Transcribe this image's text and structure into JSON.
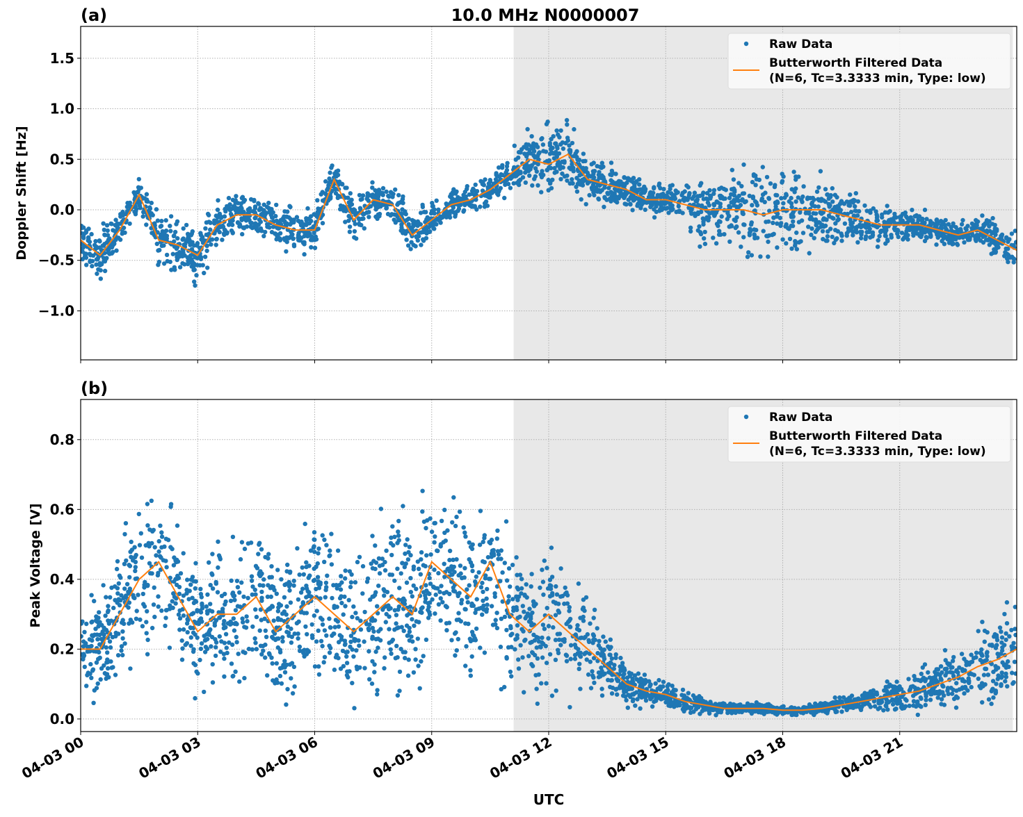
{
  "title": "10.0 MHz N0000007",
  "xlabel": "UTC",
  "x_tick_labels": [
    "04-03 00",
    "04-03 03",
    "04-03 06",
    "04-03 09",
    "04-03 12",
    "04-03 15",
    "04-03 18",
    "04-03 21"
  ],
  "x_tick_hours": [
    0,
    3,
    6,
    9,
    12,
    15,
    18,
    21
  ],
  "xlim_hours": [
    0,
    24
  ],
  "shaded_region_hours": [
    11.1,
    23.9
  ],
  "colors": {
    "raw": "#1f77b4",
    "filtered": "#ff7f0e",
    "shade": "#e8e8e8",
    "grid": "#b0b0b0"
  },
  "legend": {
    "raw_label": "Raw Data",
    "filtered_label_line1": "Butterworth Filtered Data",
    "filtered_label_line2": "(N=6, Tc=3.3333 min, Type: low)",
    "placement": "upper right"
  },
  "chart_data": [
    {
      "type": "scatter+line",
      "panel_label": "(a)",
      "ylabel": "Doppler Shift [Hz]",
      "ylim": [
        -1.485,
        1.815
      ],
      "y_ticks": [
        -1.0,
        -0.5,
        0.0,
        0.5,
        1.0,
        1.5
      ],
      "y_tick_labels": [
        "−1.0",
        "−0.5",
        "0.0",
        "0.5",
        "1.0",
        "1.5"
      ],
      "grid": true,
      "x_hours": [
        0,
        0.5,
        1,
        1.5,
        2,
        2.5,
        3,
        3.5,
        4,
        4.5,
        5,
        5.5,
        6,
        6.5,
        7,
        7.5,
        8,
        8.5,
        9,
        9.5,
        10,
        10.5,
        11,
        11.5,
        12,
        12.5,
        13,
        13.5,
        14,
        14.5,
        15,
        15.5,
        16,
        16.5,
        17,
        17.5,
        18,
        18.5,
        19,
        19.5,
        20,
        20.5,
        21,
        21.5,
        22,
        22.5,
        23,
        23.5,
        24
      ],
      "series": [
        {
          "name": "Butterworth Filtered Data",
          "kind": "line",
          "values": [
            -0.3,
            -0.45,
            -0.2,
            0.15,
            -0.3,
            -0.35,
            -0.45,
            -0.15,
            -0.05,
            -0.05,
            -0.15,
            -0.2,
            -0.2,
            0.3,
            -0.1,
            0.1,
            0.05,
            -0.25,
            -0.1,
            0.05,
            0.1,
            0.2,
            0.35,
            0.5,
            0.45,
            0.55,
            0.3,
            0.25,
            0.2,
            0.1,
            0.1,
            0.05,
            0.0,
            0.0,
            0.0,
            -0.05,
            0.0,
            0.0,
            0.0,
            -0.05,
            -0.1,
            -0.15,
            -0.15,
            -0.15,
            -0.2,
            -0.25,
            -0.2,
            -0.3,
            -0.4
          ]
        },
        {
          "name": "Raw Data",
          "kind": "scatter",
          "band_halfwidth": [
            0.3,
            0.35,
            0.3,
            0.25,
            0.35,
            0.35,
            0.4,
            0.35,
            0.25,
            0.3,
            0.3,
            0.3,
            0.3,
            0.25,
            0.3,
            0.25,
            0.25,
            0.3,
            0.25,
            0.2,
            0.2,
            0.2,
            0.25,
            0.4,
            0.5,
            0.4,
            0.3,
            0.3,
            0.25,
            0.2,
            0.2,
            0.25,
            0.5,
            0.55,
            0.6,
            0.6,
            0.6,
            0.55,
            0.5,
            0.4,
            0.3,
            0.25,
            0.2,
            0.2,
            0.2,
            0.2,
            0.2,
            0.25,
            0.3
          ]
        }
      ]
    },
    {
      "type": "scatter+line",
      "panel_label": "(b)",
      "ylabel": "Peak Voltage [V]",
      "ylim": [
        -0.036,
        0.915
      ],
      "y_ticks": [
        0.0,
        0.2,
        0.4,
        0.6,
        0.8
      ],
      "y_tick_labels": [
        "0.0",
        "0.2",
        "0.4",
        "0.6",
        "0.8"
      ],
      "grid": true,
      "x_hours": [
        0,
        0.5,
        1,
        1.5,
        2,
        2.5,
        3,
        3.5,
        4,
        4.5,
        5,
        5.5,
        6,
        6.5,
        7,
        7.5,
        8,
        8.5,
        9,
        9.5,
        10,
        10.5,
        11,
        11.5,
        12,
        12.5,
        13,
        13.5,
        14,
        14.5,
        15,
        15.5,
        16,
        16.5,
        17,
        17.5,
        18,
        18.5,
        19,
        19.5,
        20,
        20.5,
        21,
        21.5,
        22,
        22.5,
        23,
        23.5,
        24
      ],
      "series": [
        {
          "name": "Butterworth Filtered Data",
          "kind": "line",
          "values": [
            0.2,
            0.2,
            0.3,
            0.4,
            0.45,
            0.35,
            0.25,
            0.3,
            0.3,
            0.35,
            0.25,
            0.3,
            0.35,
            0.3,
            0.25,
            0.3,
            0.35,
            0.3,
            0.45,
            0.4,
            0.35,
            0.45,
            0.3,
            0.25,
            0.3,
            0.25,
            0.2,
            0.15,
            0.1,
            0.08,
            0.07,
            0.05,
            0.04,
            0.03,
            0.03,
            0.03,
            0.025,
            0.025,
            0.03,
            0.04,
            0.05,
            0.06,
            0.07,
            0.08,
            0.1,
            0.12,
            0.15,
            0.17,
            0.2
          ]
        },
        {
          "name": "Raw Data",
          "kind": "scatter",
          "band_halfwidth": [
            0.15,
            0.2,
            0.25,
            0.3,
            0.3,
            0.3,
            0.25,
            0.3,
            0.3,
            0.32,
            0.3,
            0.3,
            0.32,
            0.3,
            0.3,
            0.32,
            0.33,
            0.33,
            0.35,
            0.33,
            0.33,
            0.33,
            0.3,
            0.28,
            0.28,
            0.25,
            0.2,
            0.12,
            0.08,
            0.06,
            0.05,
            0.04,
            0.03,
            0.025,
            0.02,
            0.02,
            0.02,
            0.02,
            0.025,
            0.03,
            0.04,
            0.05,
            0.06,
            0.08,
            0.1,
            0.12,
            0.15,
            0.18,
            0.2
          ]
        }
      ]
    }
  ]
}
